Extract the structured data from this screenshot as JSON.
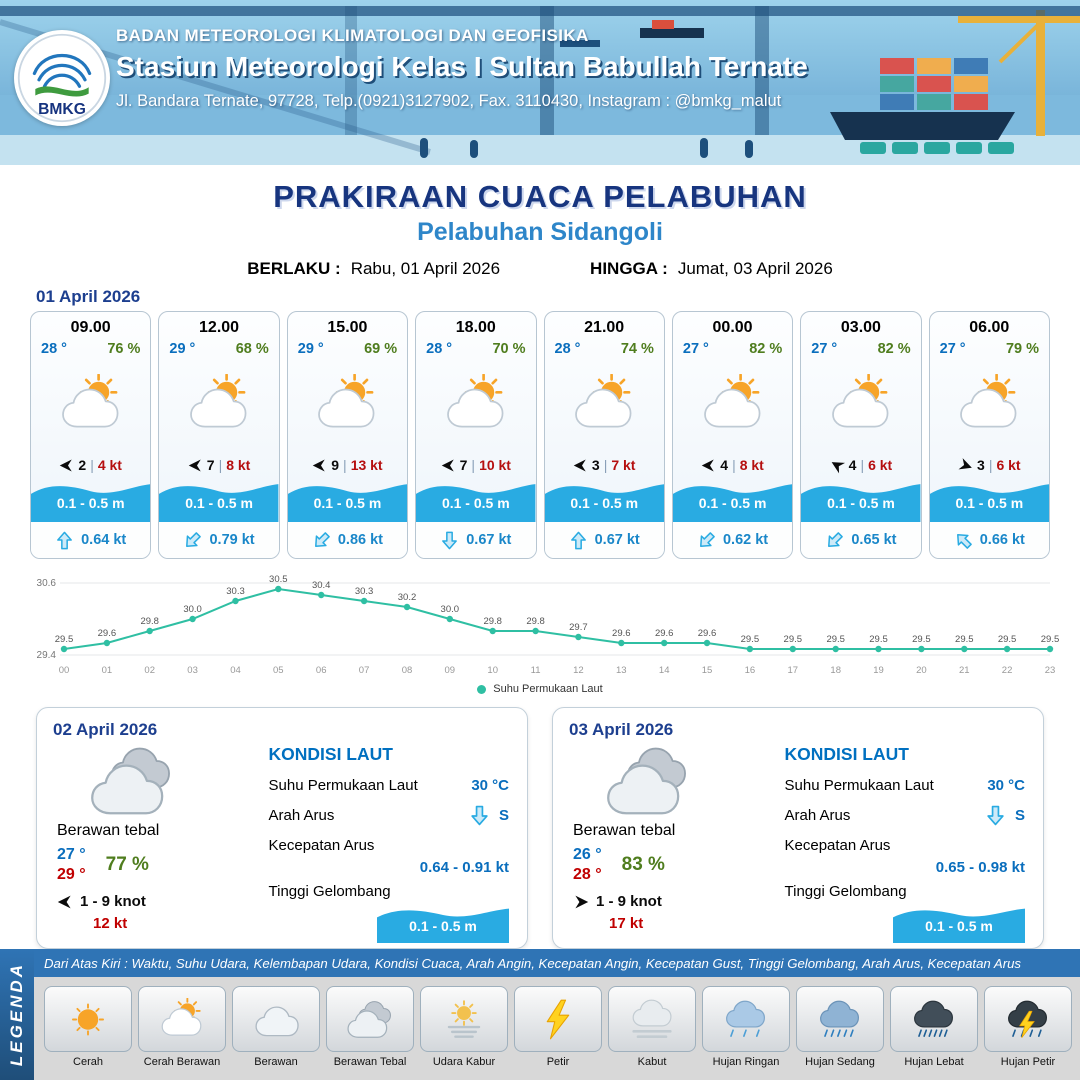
{
  "header": {
    "agency": "BADAN METEOROLOGI KLIMATOLOGI DAN GEOFISIKA",
    "station": "Stasiun Meteorologi Kelas I Sultan Babullah Ternate",
    "address": "Jl. Bandara Ternate, 97728, Telp.(0921)3127902, Fax. 3110430, Instagram : @bmkg_malut",
    "logo_text": "BMKG"
  },
  "title": {
    "main": "PRAKIRAAN CUACA PELABUHAN",
    "sub": "Pelabuhan Sidangoli",
    "berlaku_label": "BERLAKU :",
    "berlaku_value": "Rabu, 01 April 2026",
    "hingga_label": "HINGGA :",
    "hingga_value": "Jumat, 03 April 2026"
  },
  "colors": {
    "navy": "#17357f",
    "light_blue": "#2e86c9",
    "temp_blue": "#0a6ebd",
    "humidity_green": "#4f7d1e",
    "wind_red": "#b50f0f",
    "wave_blue": "#29abe2",
    "chart_teal": "#2fbfa3",
    "legend_bar_blue": "#2f74b5"
  },
  "forecast": {
    "date": "01 April 2026",
    "cards": [
      {
        "time": "09.00",
        "temp": "28 °",
        "humidity": "76 %",
        "icon": "cerah-berawan",
        "wind_value": "2",
        "wind_speed": "4 kt",
        "wind_rot": 0,
        "wave": "0.1 - 0.5 m",
        "current": "0.64 kt",
        "current_rot": 0
      },
      {
        "time": "12.00",
        "temp": "29 °",
        "humidity": "68 %",
        "icon": "cerah-berawan",
        "wind_value": "7",
        "wind_speed": "8 kt",
        "wind_rot": 0,
        "wave": "0.1 - 0.5 m",
        "current": "0.79 kt",
        "current_rot": 225
      },
      {
        "time": "15.00",
        "temp": "29 °",
        "humidity": "69 %",
        "icon": "cerah-berawan",
        "wind_value": "9",
        "wind_speed": "13 kt",
        "wind_rot": 0,
        "wave": "0.1 - 0.5 m",
        "current": "0.86 kt",
        "current_rot": 225
      },
      {
        "time": "18.00",
        "temp": "28 °",
        "humidity": "70 %",
        "icon": "cerah-berawan",
        "wind_value": "7",
        "wind_speed": "10 kt",
        "wind_rot": 0,
        "wave": "0.1 - 0.5 m",
        "current": "0.67 kt",
        "current_rot": 180
      },
      {
        "time": "21.00",
        "temp": "28 °",
        "humidity": "74 %",
        "icon": "cerah-berawan",
        "wind_value": "3",
        "wind_speed": "7 kt",
        "wind_rot": 0,
        "wave": "0.1 - 0.5 m",
        "current": "0.67 kt",
        "current_rot": 0
      },
      {
        "time": "00.00",
        "temp": "27 °",
        "humidity": "82 %",
        "icon": "cerah-berawan",
        "wind_value": "4",
        "wind_speed": "8 kt",
        "wind_rot": 0,
        "wave": "0.1 - 0.5 m",
        "current": "0.62 kt",
        "current_rot": 225
      },
      {
        "time": "03.00",
        "temp": "27 °",
        "humidity": "82 %",
        "icon": "cerah-berawan",
        "wind_value": "4",
        "wind_speed": "6 kt",
        "wind_rot": 30,
        "wave": "0.1 - 0.5 m",
        "current": "0.65 kt",
        "current_rot": 225
      },
      {
        "time": "06.00",
        "temp": "27 °",
        "humidity": "79 %",
        "icon": "cerah-berawan",
        "wind_value": "3",
        "wind_speed": "6 kt",
        "wind_rot": 200,
        "wave": "0.1 - 0.5 m",
        "current": "0.66 kt",
        "current_rot": 315
      }
    ]
  },
  "chart_data": {
    "type": "line",
    "title": "",
    "xlabel": "",
    "ylabel": "",
    "x": [
      "00",
      "01",
      "02",
      "03",
      "04",
      "05",
      "06",
      "07",
      "08",
      "09",
      "10",
      "11",
      "12",
      "13",
      "14",
      "15",
      "16",
      "17",
      "18",
      "19",
      "20",
      "21",
      "22",
      "23"
    ],
    "values": [
      29.5,
      29.6,
      29.8,
      30.0,
      30.3,
      30.5,
      30.4,
      30.3,
      30.2,
      30.0,
      29.8,
      29.8,
      29.7,
      29.6,
      29.6,
      29.6,
      29.5,
      29.5,
      29.5,
      29.5,
      29.5,
      29.5,
      29.5,
      29.5
    ],
    "ylim": [
      29.4,
      30.6
    ],
    "legend": "Suhu Permukaan Laut",
    "legend_position": "bottom-center",
    "grid": false,
    "line_color": "#2fbfa3"
  },
  "daily": [
    {
      "date": "02 April 2026",
      "condition": "Berawan tebal",
      "icon": "berawan-tebal",
      "temp_min": "27 °",
      "temp_max": "29 °",
      "humidity": "77 %",
      "wind_range": "1 - 9 knot",
      "wind_gust": "12 kt",
      "wind_rot": 0,
      "sea": {
        "title": "KONDISI LAUT",
        "sst_label": "Suhu Permukaan Laut",
        "sst": "30 °C",
        "arah_label": "Arah Arus",
        "arah": "S",
        "kecepatan_label": "Kecepatan Arus",
        "kecepatan": "0.64  - 0.91 kt",
        "gelombang_label": "Tinggi Gelombang",
        "gelombang": "0.1 - 0.5 m"
      }
    },
    {
      "date": "03 April 2026",
      "condition": "Berawan tebal",
      "icon": "berawan-tebal",
      "temp_min": "26 °",
      "temp_max": "28 °",
      "humidity": "83 %",
      "wind_range": "1 - 9 knot",
      "wind_gust": "17 kt",
      "wind_rot": 180,
      "sea": {
        "title": "KONDISI LAUT",
        "sst_label": "Suhu Permukaan Laut",
        "sst": "30 °C",
        "arah_label": "Arah Arus",
        "arah": "S",
        "kecepatan_label": "Kecepatan Arus",
        "kecepatan": "0.65  - 0.98 kt",
        "gelombang_label": "Tinggi Gelombang",
        "gelombang": "0.1 - 0.5 m"
      }
    }
  ],
  "legend": {
    "title": "LEGENDA",
    "description": "Dari Atas Kiri : Waktu, Suhu Udara, Kelembapan Udara, Kondisi Cuaca, Arah Angin, Kecepatan Angin, Kecepatan Gust, Tinggi Gelombang, Arah Arus, Kecepatan Arus",
    "items": [
      {
        "label": "Cerah",
        "icon": "cerah"
      },
      {
        "label": "Cerah Berawan",
        "icon": "cerah-berawan"
      },
      {
        "label": "Berawan",
        "icon": "berawan"
      },
      {
        "label": "Berawan Tebal",
        "icon": "berawan-tebal"
      },
      {
        "label": "Udara Kabur",
        "icon": "udara-kabur"
      },
      {
        "label": "Petir",
        "icon": "petir"
      },
      {
        "label": "Kabut",
        "icon": "kabut"
      },
      {
        "label": "Hujan Ringan",
        "icon": "hujan-ringan"
      },
      {
        "label": "Hujan Sedang",
        "icon": "hujan-sedang"
      },
      {
        "label": "Hujan Lebat",
        "icon": "hujan-lebat"
      },
      {
        "label": "Hujan Petir",
        "icon": "hujan-petir"
      }
    ]
  }
}
